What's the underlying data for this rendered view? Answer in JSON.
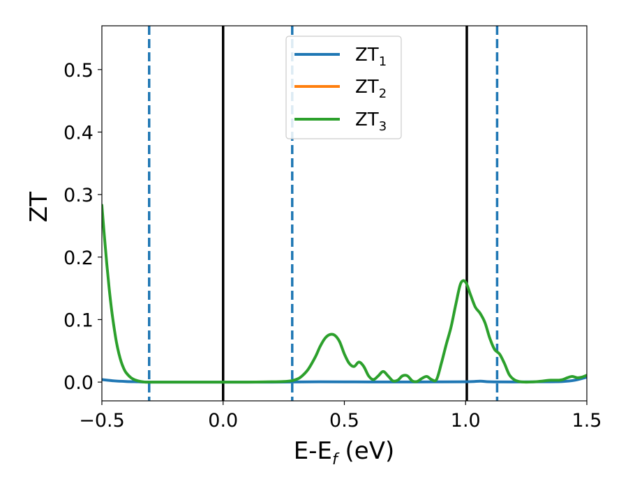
{
  "chart_data": {
    "type": "line",
    "xlabel": {
      "main": "E-E",
      "sub": "f",
      "unit": " (eV)"
    },
    "ylabel": "ZT",
    "xlim": [
      -0.5,
      1.5
    ],
    "ylim": [
      -0.03,
      0.57
    ],
    "xticks": [
      {
        "value": -0.5,
        "label": "−0.5"
      },
      {
        "value": 0.0,
        "label": "0.0"
      },
      {
        "value": 0.5,
        "label": "0.5"
      },
      {
        "value": 1.0,
        "label": "1.0"
      },
      {
        "value": 1.5,
        "label": "1.5"
      }
    ],
    "yticks": [
      {
        "value": 0.0,
        "label": "0.0"
      },
      {
        "value": 0.1,
        "label": "0.1"
      },
      {
        "value": 0.2,
        "label": "0.2"
      },
      {
        "value": 0.3,
        "label": "0.3"
      },
      {
        "value": 0.4,
        "label": "0.4"
      },
      {
        "value": 0.5,
        "label": "0.5"
      }
    ],
    "grid": false,
    "legend_position": "top-center",
    "series": [
      {
        "name": "ZT",
        "sub": "1",
        "color": "#1f77b4",
        "x": [
          -0.5,
          -0.45,
          -0.4,
          -0.35,
          -0.3,
          -0.2,
          0.0,
          0.2,
          0.4,
          0.6,
          0.8,
          1.0,
          1.06,
          1.1,
          1.2,
          1.3,
          1.4,
          1.45,
          1.5
        ],
        "y": [
          0.004,
          0.002,
          0.001,
          0.0005,
          0.0,
          0.0,
          0.0,
          0.0,
          0.0005,
          0.0003,
          0.0003,
          0.0005,
          0.0015,
          0.0005,
          0.0003,
          0.0005,
          0.001,
          0.003,
          0.008
        ]
      },
      {
        "name": "ZT",
        "sub": "2",
        "color": "#ff7f0e",
        "x": [],
        "y": []
      },
      {
        "name": "ZT",
        "sub": "3",
        "color": "#2ca02c",
        "x": [
          -0.5,
          -0.49,
          -0.48,
          -0.47,
          -0.46,
          -0.45,
          -0.44,
          -0.43,
          -0.42,
          -0.41,
          -0.4,
          -0.38,
          -0.36,
          -0.34,
          -0.32,
          -0.3,
          -0.28,
          -0.25,
          -0.2,
          -0.1,
          0.0,
          0.1,
          0.2,
          0.25,
          0.28,
          0.3,
          0.32,
          0.35,
          0.38,
          0.4,
          0.42,
          0.44,
          0.46,
          0.48,
          0.5,
          0.52,
          0.54,
          0.56,
          0.58,
          0.6,
          0.62,
          0.64,
          0.66,
          0.68,
          0.7,
          0.72,
          0.74,
          0.76,
          0.78,
          0.8,
          0.82,
          0.84,
          0.86,
          0.88,
          0.9,
          0.92,
          0.94,
          0.96,
          0.98,
          1.0,
          1.02,
          1.04,
          1.06,
          1.08,
          1.1,
          1.12,
          1.14,
          1.16,
          1.18,
          1.2,
          1.22,
          1.25,
          1.3,
          1.35,
          1.38,
          1.4,
          1.42,
          1.44,
          1.46,
          1.48,
          1.5
        ],
        "y": [
          0.283,
          0.235,
          0.19,
          0.15,
          0.116,
          0.088,
          0.064,
          0.046,
          0.032,
          0.022,
          0.015,
          0.007,
          0.003,
          0.001,
          0.0,
          0.0,
          0.0,
          0.0,
          0.0,
          0.0,
          0.0,
          0.0,
          0.0005,
          0.001,
          0.002,
          0.004,
          0.008,
          0.02,
          0.04,
          0.057,
          0.07,
          0.076,
          0.075,
          0.065,
          0.045,
          0.03,
          0.025,
          0.032,
          0.025,
          0.01,
          0.004,
          0.01,
          0.017,
          0.01,
          0.002,
          0.003,
          0.01,
          0.01,
          0.002,
          0.001,
          0.006,
          0.009,
          0.004,
          0.004,
          0.03,
          0.06,
          0.088,
          0.125,
          0.158,
          0.16,
          0.14,
          0.12,
          0.11,
          0.095,
          0.07,
          0.052,
          0.045,
          0.03,
          0.012,
          0.004,
          0.001,
          0.0,
          0.001,
          0.003,
          0.003,
          0.004,
          0.007,
          0.009,
          0.007,
          0.008,
          0.011
        ]
      }
    ],
    "vlines": [
      {
        "x": 0.0,
        "color": "#000000",
        "style": "solid"
      },
      {
        "x": 1.005,
        "color": "#000000",
        "style": "solid"
      },
      {
        "x": -0.305,
        "color": "#1f77b4",
        "style": "dashed"
      },
      {
        "x": 0.285,
        "color": "#1f77b4",
        "style": "dashed"
      },
      {
        "x": 1.13,
        "color": "#1f77b4",
        "style": "dashed"
      }
    ]
  }
}
